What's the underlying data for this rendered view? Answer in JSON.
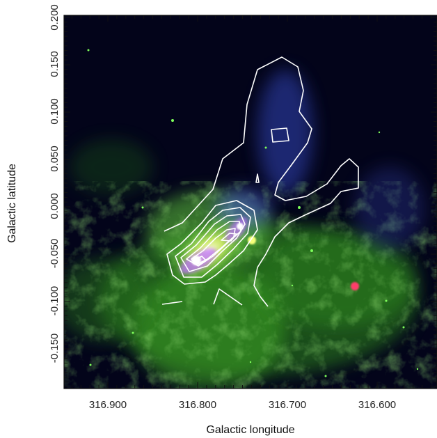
{
  "figure": {
    "xlabel": "Galactic longitude",
    "ylabel": "Galactic latitude",
    "x_ticks": [
      "316.900",
      "316.800",
      "316.700",
      "316.600"
    ],
    "y_ticks": [
      "0.200",
      "0.150",
      "0.100",
      "0.050",
      "0.000",
      "-0.050",
      "-0.100",
      "-0.150"
    ],
    "x_range": [
      316.96,
      316.545
    ],
    "y_range": [
      -0.195,
      0.202
    ],
    "colors": {
      "background": "#03041a",
      "green_emission": "#4fbf2e",
      "blue_emission": "#3f4fd0",
      "red_source": "#ff3c6a",
      "contour": "#ffffff"
    }
  }
}
